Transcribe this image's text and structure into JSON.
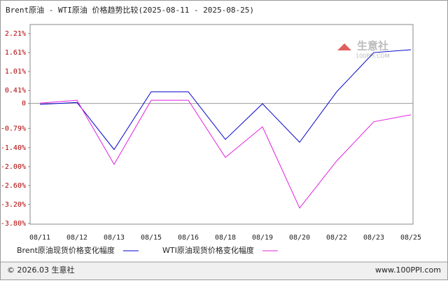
{
  "chart_data": {
    "type": "line",
    "title": "Brent原油 - WTI原油 价格趋势比较(2025-08-11 - 2025-08-25)",
    "categories": [
      "08/11",
      "08/12",
      "08/13",
      "08/15",
      "08/16",
      "08/18",
      "08/19",
      "08/20",
      "08/22",
      "08/23",
      "08/25"
    ],
    "series": [
      {
        "name": "Brent原油现货价格变化幅度",
        "color": "#0000cc",
        "values": [
          -0.03,
          0.03,
          -1.46,
          0.37,
          0.37,
          -1.14,
          -0.01,
          -1.23,
          0.37,
          1.61,
          1.7
        ]
      },
      {
        "name": "WTI原油现货价格变化幅度",
        "color": "#e020e0",
        "values": [
          0.01,
          0.1,
          -1.93,
          0.1,
          0.1,
          -1.71,
          -0.74,
          -3.31,
          -1.82,
          -0.58,
          -0.36
        ]
      }
    ],
    "ylim": [
      -3.8,
      2.21
    ],
    "yticks": [
      {
        "value": 2.21,
        "label": "2.21%"
      },
      {
        "value": 1.61,
        "label": "1.61%"
      },
      {
        "value": 1.01,
        "label": "1.01%"
      },
      {
        "value": 0.41,
        "label": "0.41%"
      },
      0,
      {
        "value": -0.79,
        "label": "-0.79%"
      },
      {
        "value": -1.4,
        "label": "-1.40%"
      },
      {
        "value": -2.0,
        "label": "-2.00%"
      },
      {
        "value": -2.6,
        "label": "-2.60%"
      },
      {
        "value": -3.2,
        "label": "-3.20%"
      },
      {
        "value": -3.8,
        "label": "-3.80%"
      }
    ],
    "grid": false,
    "watermark": {
      "name": "生意社",
      "site": "100PPI.COM"
    },
    "footer": {
      "left": "© 2026.03 生意社",
      "right": "www.100PPI.com"
    }
  }
}
